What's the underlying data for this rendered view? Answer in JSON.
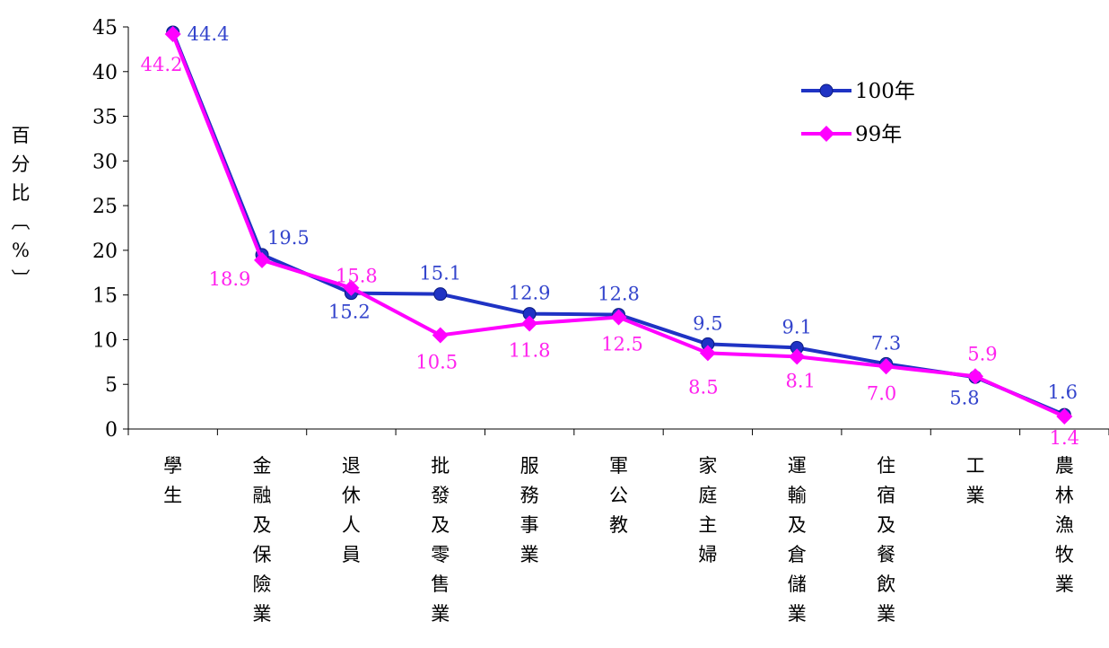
{
  "chart_data": {
    "type": "line",
    "ylabel_chars": [
      "百",
      "分",
      "比",
      "︹",
      "%",
      "︺"
    ],
    "categories": [
      [
        "學",
        "生"
      ],
      [
        "金",
        "融",
        "及",
        "保",
        "險",
        "業"
      ],
      [
        "退",
        "休",
        "人",
        "員"
      ],
      [
        "批",
        "發",
        "及",
        "零",
        "售",
        "業"
      ],
      [
        "服",
        "務",
        "事",
        "業"
      ],
      [
        "軍",
        "公",
        "教"
      ],
      [
        "家",
        "庭",
        "主",
        "婦"
      ],
      [
        "運",
        "輸",
        "及",
        "倉",
        "儲",
        "業"
      ],
      [
        "住",
        "宿",
        "及",
        "餐",
        "飲",
        "業"
      ],
      [
        "工",
        "業"
      ],
      [
        "農",
        "林",
        "漁",
        "牧",
        "業"
      ]
    ],
    "series": [
      {
        "name": "100年",
        "color": "#1f33c4",
        "label_color": "#3344cc",
        "marker": "circle",
        "values": [
          44.4,
          19.5,
          15.2,
          15.1,
          12.9,
          12.8,
          9.5,
          9.1,
          7.3,
          5.8,
          1.6
        ]
      },
      {
        "name": "99年",
        "color": "#ff00ff",
        "label_color": "#ff22ee",
        "marker": "diamond",
        "values": [
          44.2,
          18.9,
          15.8,
          10.5,
          11.8,
          12.5,
          8.5,
          8.1,
          7.0,
          5.9,
          1.4
        ]
      }
    ],
    "ylim": [
      0,
      45
    ],
    "yticks": [
      0,
      5,
      10,
      15,
      20,
      25,
      30,
      35,
      40,
      45
    ],
    "legend_position": "top-right",
    "grid": false
  }
}
